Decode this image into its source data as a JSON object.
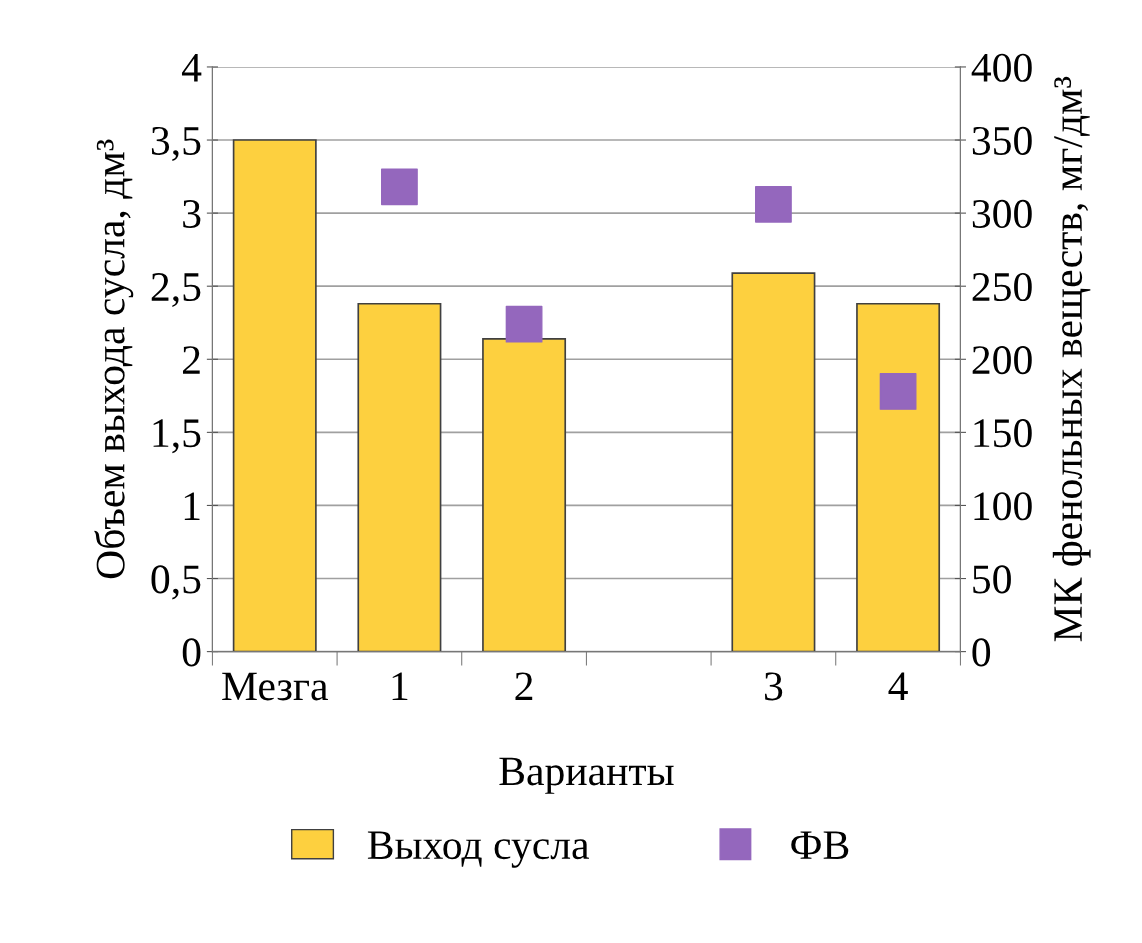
{
  "chart_data": {
    "type": "bar",
    "xlabel": "Варианты",
    "ylabel": "Объем выхода сусла, дм³",
    "y2label": "МК фенольных веществ, мг/дм³",
    "categories": [
      "Мезга",
      "1",
      "2",
      null,
      "3",
      "4"
    ],
    "series": [
      {
        "name": "Выход сусла",
        "color": "#fdd03f",
        "values": [
          3.5,
          2.38,
          2.14,
          null,
          2.59,
          2.38
        ]
      },
      {
        "name": "ФВ",
        "type": "scatter",
        "axis": "y2",
        "marker": "square",
        "color": "#9467bd",
        "values": [
          null,
          318,
          224,
          null,
          306,
          178
        ]
      }
    ],
    "ylim": [
      0,
      4
    ],
    "yticks": [
      0,
      {
        "value": 0.5,
        "label": "0,5"
      },
      1,
      {
        "value": 1.5,
        "label": "1,5"
      },
      2,
      {
        "value": 2.5,
        "label": "2,5"
      },
      3,
      {
        "value": 3.5,
        "label": "3,5"
      },
      4
    ],
    "y2lim": [
      0,
      400
    ],
    "y2ticks": [
      0,
      50,
      100,
      150,
      200,
      250,
      300,
      350,
      400
    ],
    "grid": "y",
    "legend": "bottom"
  }
}
